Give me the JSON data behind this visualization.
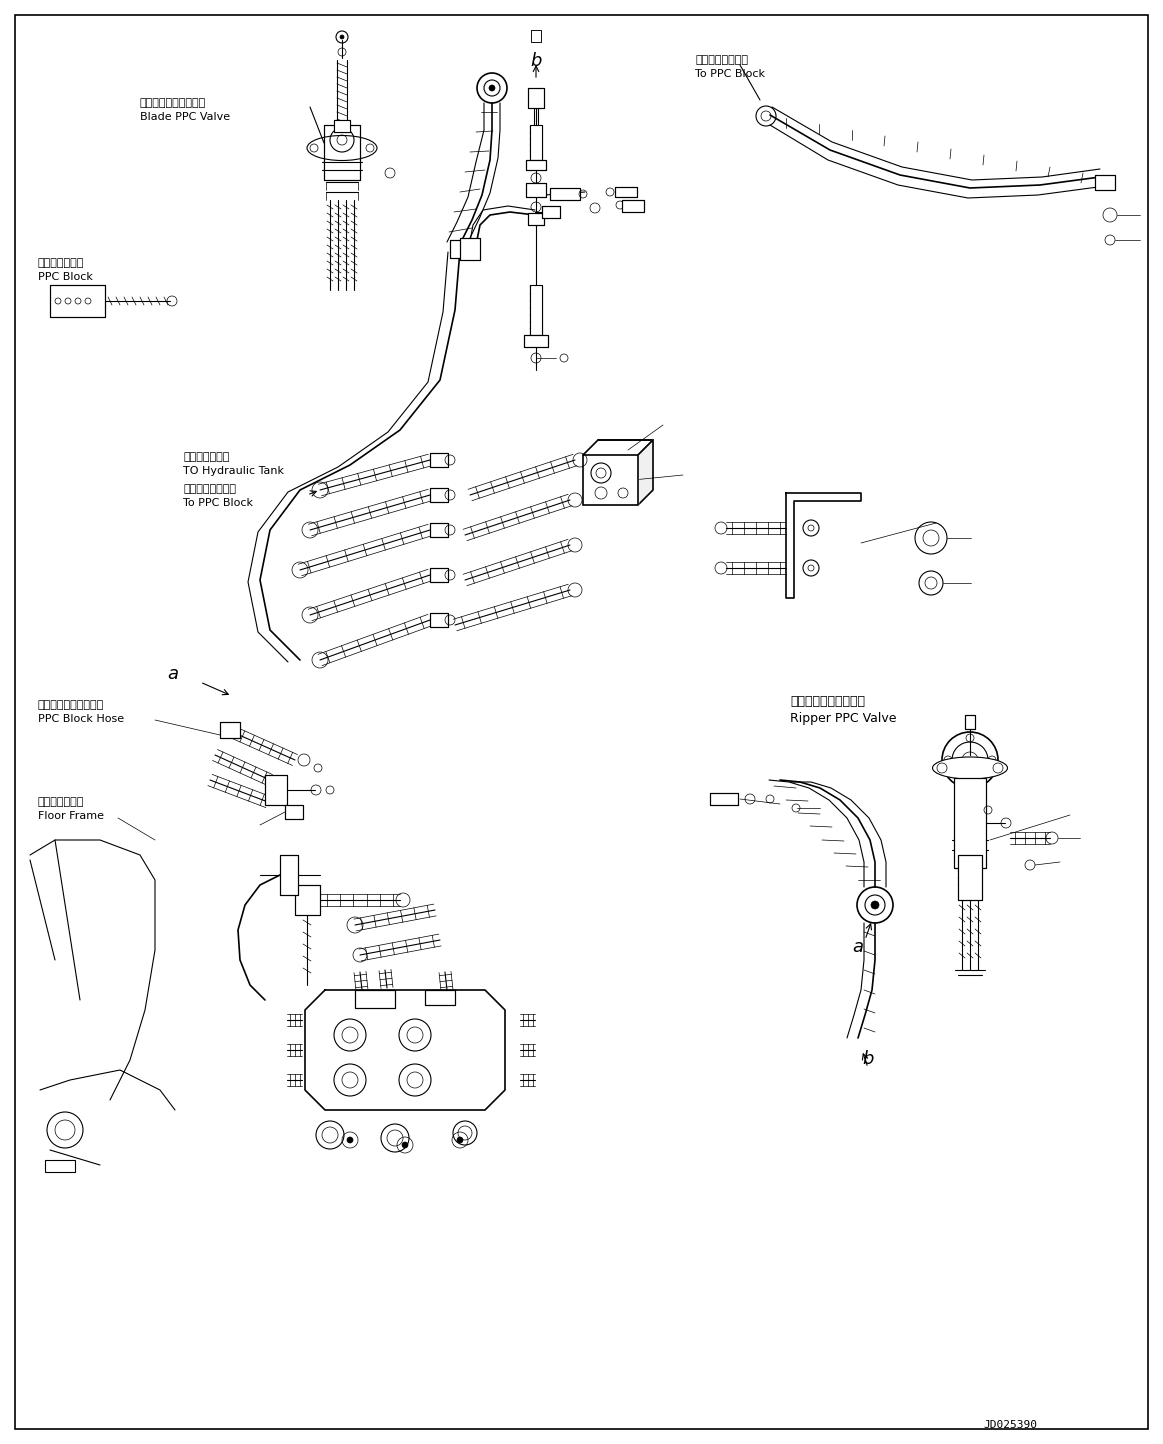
{
  "bg_color": "#ffffff",
  "line_color": "#000000",
  "fig_width": 11.63,
  "fig_height": 14.44,
  "dpi": 100,
  "labels": {
    "blade_ppc_valve_jp": "ブレードＰＰＣバルブ",
    "blade_ppc_valve_en": "Blade PPC Valve",
    "ppc_block_jp": "ＰＰＣブロック",
    "ppc_block_en": "PPC Block",
    "hydraulic_tank_jp": "作動油タンクへ",
    "hydraulic_tank_en": "TO Hydraulic Tank",
    "to_ppc_block_jp": "ＰＰＣブロックへ",
    "to_ppc_block_en": "To PPC Block",
    "to_ppc_block2_jp": "ＰＰＣブロックへ",
    "to_ppc_block2_en": "To PPC Block",
    "ppc_block_hose_jp": "ＰＰＣブロックホース",
    "ppc_block_hose_en": "PPC Block Hose",
    "floor_frame_jp": "フロアフレーム",
    "floor_frame_en": "Floor Frame",
    "ripper_ppc_valve_jp": "リッパ　ＰＰＣバルブ",
    "ripper_ppc_valve_en": "Ripper PPC Valve",
    "part_number": "JD025390",
    "label_a1": "a",
    "label_b1": "b",
    "label_a2": "a",
    "label_b2": "b"
  },
  "font_sizes": {
    "label_jp": 8,
    "label_en": 8,
    "part_number": 8,
    "ab_label": 13
  }
}
